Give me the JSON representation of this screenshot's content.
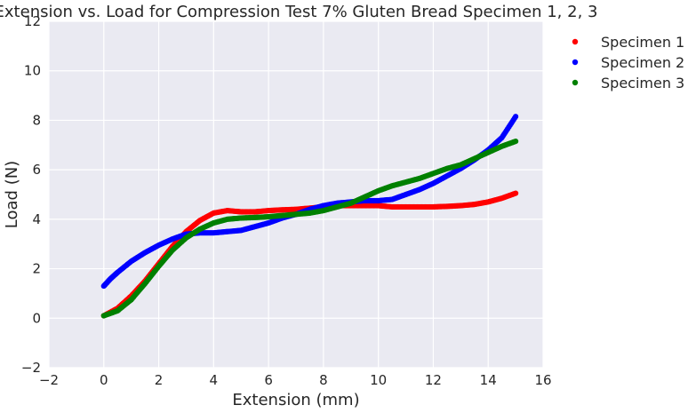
{
  "chart_data": {
    "type": "scatter",
    "title": "Extension vs. Load for Compression Test 7% Gluten Bread Specimen 1, 2, 3",
    "xlabel": "Extension (mm)",
    "ylabel": "Load (N)",
    "xlim": [
      -2,
      16
    ],
    "ylim": [
      -2,
      12
    ],
    "xticks": [
      -2,
      0,
      2,
      4,
      6,
      8,
      10,
      12,
      14,
      16
    ],
    "yticks": [
      -2,
      0,
      2,
      4,
      6,
      8,
      10,
      12
    ],
    "grid": true,
    "legend": "outside-top-right",
    "series": [
      {
        "name": "Specimen 1",
        "color": "#ff0000",
        "points": [
          [
            0,
            0.1
          ],
          [
            0.5,
            0.4
          ],
          [
            1,
            0.9
          ],
          [
            1.5,
            1.5
          ],
          [
            2,
            2.2
          ],
          [
            2.5,
            2.9
          ],
          [
            3,
            3.5
          ],
          [
            3.5,
            3.95
          ],
          [
            4,
            4.25
          ],
          [
            4.5,
            4.35
          ],
          [
            5,
            4.3
          ],
          [
            5.5,
            4.3
          ],
          [
            6,
            4.35
          ],
          [
            6.5,
            4.38
          ],
          [
            7,
            4.4
          ],
          [
            7.5,
            4.45
          ],
          [
            8,
            4.5
          ],
          [
            8.5,
            4.55
          ],
          [
            9,
            4.55
          ],
          [
            9.5,
            4.55
          ],
          [
            10,
            4.55
          ],
          [
            10.5,
            4.5
          ],
          [
            11,
            4.5
          ],
          [
            11.5,
            4.5
          ],
          [
            12,
            4.5
          ],
          [
            12.5,
            4.52
          ],
          [
            13,
            4.55
          ],
          [
            13.5,
            4.6
          ],
          [
            14,
            4.7
          ],
          [
            14.5,
            4.85
          ],
          [
            15,
            5.05
          ]
        ]
      },
      {
        "name": "Specimen 2",
        "color": "#0000ff",
        "points": [
          [
            0,
            1.3
          ],
          [
            0.25,
            1.6
          ],
          [
            0.5,
            1.85
          ],
          [
            1,
            2.3
          ],
          [
            1.5,
            2.65
          ],
          [
            2,
            2.95
          ],
          [
            2.5,
            3.2
          ],
          [
            3,
            3.4
          ],
          [
            3.5,
            3.45
          ],
          [
            4,
            3.45
          ],
          [
            4.5,
            3.5
          ],
          [
            5,
            3.55
          ],
          [
            5.5,
            3.7
          ],
          [
            6,
            3.85
          ],
          [
            6.5,
            4.05
          ],
          [
            7,
            4.2
          ],
          [
            7.5,
            4.4
          ],
          [
            8,
            4.55
          ],
          [
            8.5,
            4.65
          ],
          [
            9,
            4.7
          ],
          [
            9.5,
            4.75
          ],
          [
            10,
            4.75
          ],
          [
            10.5,
            4.8
          ],
          [
            11,
            5.0
          ],
          [
            11.5,
            5.2
          ],
          [
            12,
            5.45
          ],
          [
            12.5,
            5.75
          ],
          [
            13,
            6.05
          ],
          [
            13.5,
            6.4
          ],
          [
            14,
            6.8
          ],
          [
            14.5,
            7.3
          ],
          [
            15,
            8.15
          ]
        ]
      },
      {
        "name": "Specimen 3",
        "color": "#008000",
        "points": [
          [
            0,
            0.1
          ],
          [
            0.5,
            0.3
          ],
          [
            1,
            0.75
          ],
          [
            1.5,
            1.4
          ],
          [
            2,
            2.1
          ],
          [
            2.5,
            2.75
          ],
          [
            3,
            3.25
          ],
          [
            3.5,
            3.6
          ],
          [
            4,
            3.85
          ],
          [
            4.5,
            4.0
          ],
          [
            5,
            4.05
          ],
          [
            5.5,
            4.07
          ],
          [
            6,
            4.1
          ],
          [
            6.5,
            4.15
          ],
          [
            7,
            4.2
          ],
          [
            7.5,
            4.25
          ],
          [
            8,
            4.35
          ],
          [
            8.5,
            4.5
          ],
          [
            9,
            4.65
          ],
          [
            9.5,
            4.9
          ],
          [
            10,
            5.15
          ],
          [
            10.5,
            5.35
          ],
          [
            11,
            5.5
          ],
          [
            11.5,
            5.65
          ],
          [
            12,
            5.85
          ],
          [
            12.5,
            6.05
          ],
          [
            13,
            6.2
          ],
          [
            13.5,
            6.45
          ],
          [
            14,
            6.7
          ],
          [
            14.5,
            6.95
          ],
          [
            15,
            7.15
          ]
        ]
      }
    ]
  }
}
